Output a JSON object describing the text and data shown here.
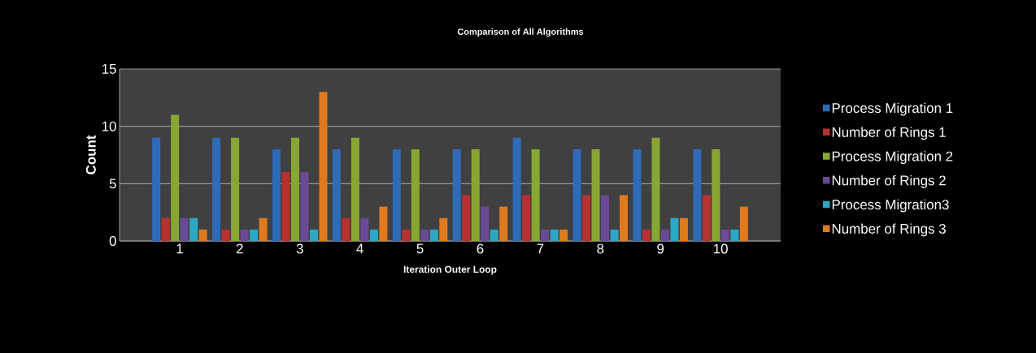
{
  "chart_data": {
    "type": "bar",
    "title": "Comparison of All Algorithms",
    "xlabel": "Iteration Outer Loop",
    "ylabel": "Count",
    "categories": [
      "1",
      "2",
      "3",
      "4",
      "5",
      "6",
      "7",
      "8",
      "9",
      "10"
    ],
    "series": [
      {
        "name": "Process Migration 1",
        "color": "#2e6bb8",
        "values": [
          9,
          9,
          8,
          8,
          8,
          8,
          9,
          8,
          8,
          8
        ]
      },
      {
        "name": "Number of Rings 1",
        "color": "#b83030",
        "values": [
          2,
          1,
          6,
          2,
          1,
          4,
          4,
          4,
          1,
          4
        ]
      },
      {
        "name": "Process Migration 2",
        "color": "#86a832",
        "values": [
          11,
          9,
          9,
          9,
          8,
          8,
          8,
          8,
          9,
          8
        ]
      },
      {
        "name": "Number of Rings 2",
        "color": "#6a4a96",
        "values": [
          2,
          1,
          6,
          2,
          1,
          3,
          1,
          4,
          1,
          1
        ]
      },
      {
        "name": "Process Migration3",
        "color": "#2aa8c4",
        "values": [
          2,
          1,
          1,
          1,
          1,
          1,
          1,
          1,
          2,
          1
        ]
      },
      {
        "name": "Number of Rings 3",
        "color": "#e07a1e",
        "values": [
          1,
          2,
          13,
          3,
          2,
          3,
          1,
          4,
          2,
          3
        ]
      }
    ],
    "ylim": [
      0,
      15
    ],
    "yticks": [
      0,
      5,
      10,
      15
    ],
    "grid": "y",
    "legend": "right"
  }
}
